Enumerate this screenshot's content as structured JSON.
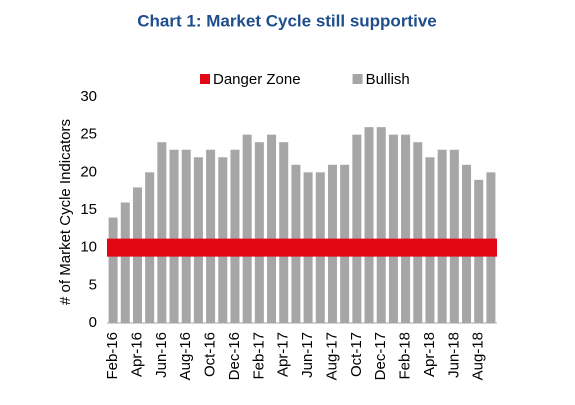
{
  "chart_data": {
    "type": "bar",
    "title": "Chart 1: Market Cycle still supportive",
    "y_axis_label": "# of Market Cycle Indicators",
    "categories": [
      "Feb-16",
      null,
      "Apr-16",
      null,
      "Jun-16",
      null,
      "Aug-16",
      null,
      "Oct-16",
      null,
      "Dec-16",
      null,
      "Feb-17",
      null,
      "Apr-17",
      null,
      "Jun-17",
      null,
      "Aug-17",
      null,
      "Oct-17",
      null,
      "Dec-17",
      null,
      "Feb-18",
      null,
      "Apr-18",
      null,
      "Jun-18",
      null,
      "Aug-18",
      null
    ],
    "series": [
      {
        "name": "Danger Zone",
        "type": "line",
        "color": "#e30613",
        "values": [
          10,
          10,
          10,
          10,
          10,
          10,
          10,
          10,
          10,
          10,
          10,
          10,
          10,
          10,
          10,
          10,
          10,
          10,
          10,
          10,
          10,
          10,
          10,
          10,
          10,
          10,
          10,
          10,
          10,
          10,
          10,
          10
        ]
      },
      {
        "name": "Bullish",
        "type": "bar",
        "color": "#a6a6a6",
        "values": [
          14,
          16,
          18,
          20,
          24,
          23,
          23,
          22,
          23,
          22,
          23,
          25,
          24,
          25,
          24,
          21,
          20,
          20,
          21,
          21,
          25,
          26,
          26,
          25,
          25,
          24,
          22,
          23,
          23,
          21,
          19,
          20
        ]
      }
    ],
    "ylim": [
      0,
      30
    ],
    "yticks": [
      0,
      5,
      10,
      15,
      20,
      25,
      30
    ],
    "grid": false,
    "legend": "top"
  }
}
